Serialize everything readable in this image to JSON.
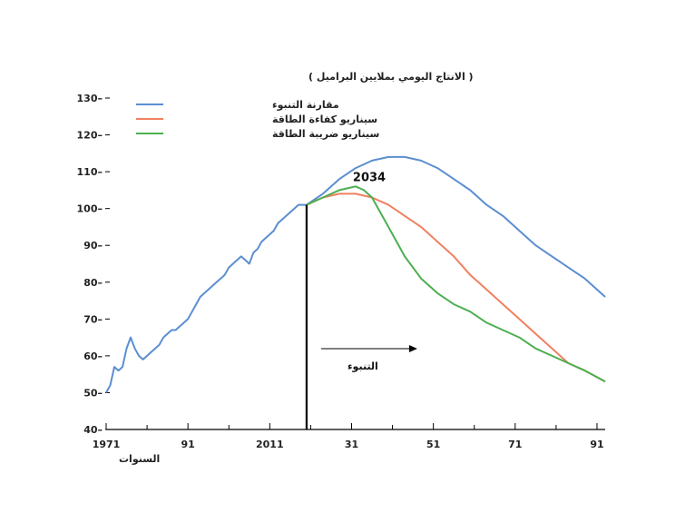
{
  "chart_data": {
    "type": "line",
    "ylabel": "( الانتاج اليومي بملايين البراميل )",
    "xlabel": "السنوات",
    "ylim": [
      40,
      130
    ],
    "xlim": [
      1971,
      2093
    ],
    "yticks": [
      40,
      50,
      60,
      70,
      80,
      90,
      100,
      110,
      120,
      130
    ],
    "xticks": [
      {
        "value": 1971,
        "label": "1971"
      },
      {
        "value": 1991,
        "label": "91"
      },
      {
        "value": 2011,
        "label": "2011"
      },
      {
        "value": 2031,
        "label": "31"
      },
      {
        "value": 2051,
        "label": "51"
      },
      {
        "value": 2071,
        "label": "71"
      },
      {
        "value": 2091,
        "label": "91"
      }
    ],
    "grid": false,
    "legend_position": "top-left",
    "annotations": {
      "peak_label": "2034",
      "peak_x": 2034,
      "peak_y": 106,
      "forecast_label": "التنبوء",
      "forecast_start_x": 2020
    },
    "series": [
      {
        "name": "مقارنة التنبوء",
        "color": "#5b8ed1",
        "x": [
          1971,
          1972,
          1973,
          1974,
          1975,
          1976,
          1977,
          1978,
          1979,
          1980,
          1981,
          1982,
          1983,
          1984,
          1985,
          1986,
          1987,
          1988,
          1989,
          1990,
          1991,
          1992,
          1993,
          1994,
          1995,
          1996,
          1997,
          1998,
          1999,
          2000,
          2001,
          2002,
          2003,
          2004,
          2005,
          2006,
          2007,
          2008,
          2009,
          2010,
          2011,
          2012,
          2013,
          2014,
          2015,
          2016,
          2017,
          2018,
          2019,
          2020,
          2024,
          2028,
          2032,
          2036,
          2040,
          2044,
          2048,
          2052,
          2056,
          2060,
          2064,
          2068,
          2072,
          2076,
          2080,
          2084,
          2088,
          2093
        ],
        "values": [
          50,
          52,
          57,
          56,
          57,
          62,
          65,
          62,
          60,
          59,
          60,
          61,
          62,
          63,
          65,
          66,
          67,
          67,
          68,
          69,
          70,
          72,
          74,
          76,
          77,
          78,
          79,
          80,
          81,
          82,
          84,
          85,
          86,
          87,
          86,
          85,
          88,
          89,
          91,
          92,
          93,
          94,
          96,
          97,
          98,
          99,
          100,
          101,
          101,
          101,
          104,
          108,
          111,
          113,
          114,
          114,
          113,
          111,
          108,
          105,
          101,
          98,
          94,
          90,
          87,
          84,
          81,
          76
        ]
      },
      {
        "name": "سيناريو كفاءة الطاقة",
        "color": "#f08060",
        "x": [
          2020,
          2024,
          2028,
          2032,
          2036,
          2040,
          2044,
          2048,
          2052,
          2056,
          2060,
          2064,
          2068,
          2072,
          2076,
          2080,
          2084,
          2088,
          2093
        ],
        "values": [
          101,
          103,
          104,
          104,
          103,
          101,
          98,
          95,
          91,
          87,
          82,
          78,
          74,
          70,
          66,
          62,
          58,
          56,
          53
        ]
      },
      {
        "name": "سيناريو ضريبة الطاقة",
        "color": "#4caf50",
        "x": [
          2020,
          2024,
          2028,
          2032,
          2034,
          2036,
          2040,
          2044,
          2048,
          2052,
          2056,
          2060,
          2064,
          2068,
          2072,
          2076,
          2080,
          2084,
          2088,
          2093
        ],
        "values": [
          101,
          103,
          105,
          106,
          105,
          103,
          95,
          87,
          81,
          77,
          74,
          72,
          69,
          67,
          65,
          62,
          60,
          58,
          56,
          53
        ]
      }
    ]
  }
}
